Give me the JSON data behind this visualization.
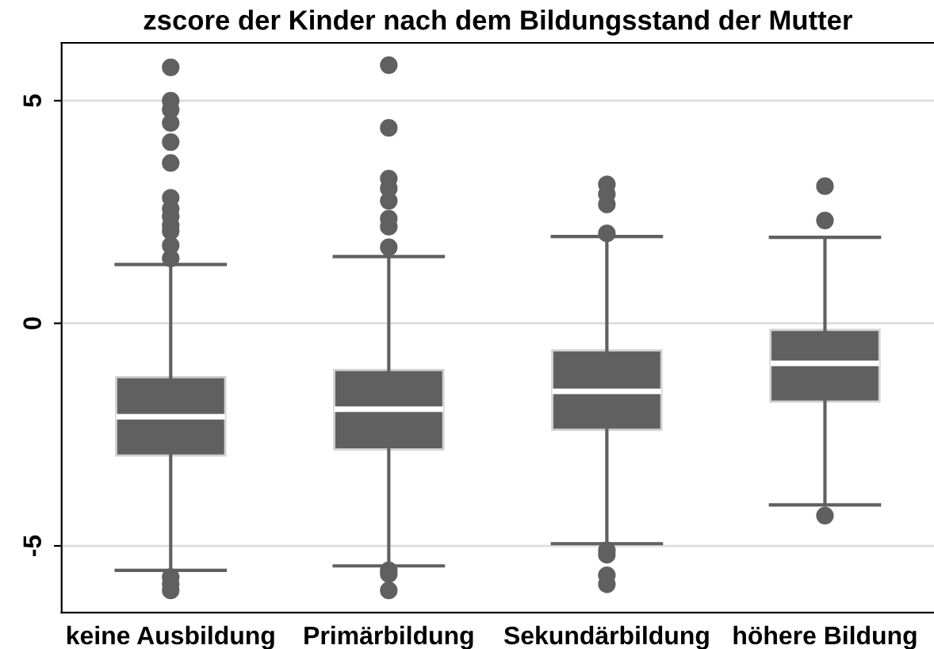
{
  "chart_data": {
    "type": "box",
    "title": "zscore der Kinder nach dem Bildungsstand der Mutter",
    "categories": [
      "keine Ausbildung",
      "Primärbildung",
      "Sekundärbildung",
      "höhere Bildung"
    ],
    "series": [
      {
        "color": "#606060",
        "boxes": [
          {
            "low": -5.55,
            "q1": -2.97,
            "median": -2.1,
            "q3": -1.21,
            "high": 1.32,
            "outliers": [
              5.75,
              5.0,
              4.8,
              4.5,
              4.07,
              3.6,
              2.82,
              2.57,
              2.4,
              2.2,
              2.07,
              1.75,
              1.46,
              -5.7,
              -5.86,
              -6.0
            ]
          },
          {
            "low": -5.45,
            "q1": -2.83,
            "median": -1.93,
            "q3": -1.05,
            "high": 1.5,
            "outliers": [
              5.8,
              4.39,
              3.25,
              3.03,
              2.75,
              2.35,
              2.17,
              1.71,
              -5.55,
              -5.63,
              -6.0
            ]
          },
          {
            "low": -4.95,
            "q1": -2.39,
            "median": -1.53,
            "q3": -0.61,
            "high": 1.95,
            "outliers": [
              3.12,
              2.9,
              2.67,
              2.02,
              -5.1,
              -5.2,
              -5.66,
              -5.86
            ]
          },
          {
            "low": -4.08,
            "q1": -1.76,
            "median": -0.9,
            "q3": -0.15,
            "high": 1.93,
            "outliers": [
              3.08,
              2.31,
              -4.32
            ]
          }
        ]
      }
    ],
    "ylim": [
      -6.5,
      6.3
    ],
    "yticks": [
      -5,
      0,
      5
    ],
    "grid": "y"
  }
}
